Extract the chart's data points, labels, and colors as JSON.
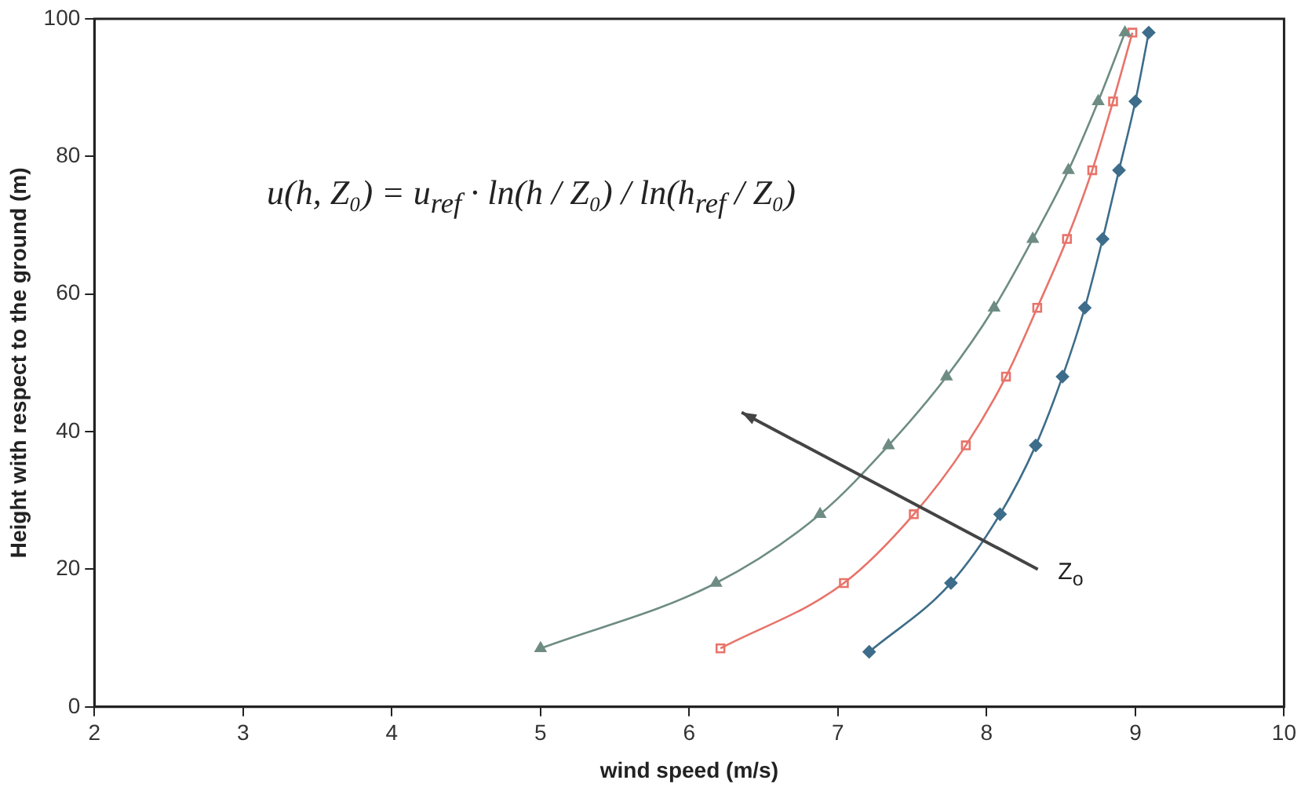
{
  "chart_data": {
    "type": "line",
    "xlabel": "wind speed (m/s)",
    "ylabel": "Height with respect to the ground (m)",
    "xlim": [
      2,
      10
    ],
    "xticks": [
      2,
      3,
      4,
      5,
      6,
      7,
      8,
      9,
      10
    ],
    "ylim": [
      0,
      100
    ],
    "yticks": [
      0,
      20,
      40,
      60,
      80,
      100
    ],
    "grid": false,
    "legend": false,
    "line_style": "solid",
    "series": [
      {
        "color": "#6e8c84",
        "marker": "triangle",
        "x": [
          5.0,
          6.18,
          6.88,
          7.34,
          7.73,
          8.05,
          8.31,
          8.55,
          8.75,
          8.93
        ],
        "values": [
          8.5,
          18,
          28,
          38,
          48,
          58,
          68,
          78,
          88,
          98
        ]
      },
      {
        "color": "#e8736a",
        "marker": "square",
        "x": [
          6.21,
          7.04,
          7.51,
          7.86,
          8.13,
          8.34,
          8.54,
          8.71,
          8.85,
          8.98
        ],
        "values": [
          8.5,
          18,
          28,
          38,
          48,
          58,
          68,
          78,
          88,
          98
        ]
      },
      {
        "color": "#3d6d8a",
        "marker": "diamond",
        "x": [
          7.21,
          7.76,
          8.09,
          8.33,
          8.51,
          8.66,
          8.78,
          8.89,
          9.0,
          9.09
        ],
        "values": [
          8,
          18,
          28,
          38,
          48,
          58,
          68,
          78,
          88,
          98
        ]
      }
    ],
    "annotations": [
      "u(h, Z₀) = u$_{ref}$ · ln(h / Z₀) / ln(h$_{ref}$ / Z₀)",
      "Z$_{o}$"
    ]
  }
}
